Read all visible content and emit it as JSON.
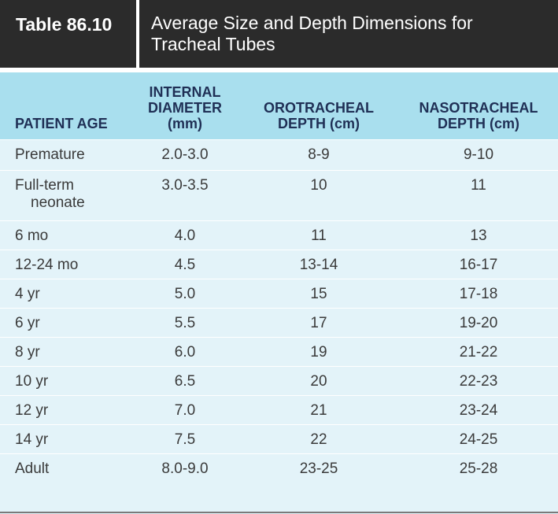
{
  "table": {
    "number": "Table 86.10",
    "title": "Average Size and Depth Dimensions for Tracheal Tubes"
  },
  "headers": {
    "patient_age": "PATIENT AGE",
    "internal_diameter": [
      "INTERNAL",
      "DIAMETER",
      "(mm)"
    ],
    "orotracheal": [
      "OROTRACHEAL",
      "DEPTH (cm)"
    ],
    "nasotracheal": [
      "NASOTRACHEAL",
      "DEPTH (cm)"
    ]
  },
  "rows": [
    {
      "age": "Premature",
      "diameter": "2.0-3.0",
      "oro": "8-9",
      "naso": "9-10"
    },
    {
      "age": "Full-term",
      "age2": "neonate",
      "diameter": "3.0-3.5",
      "oro": "10",
      "naso": "11"
    },
    {
      "age": "6 mo",
      "diameter": "4.0",
      "oro": "11",
      "naso": "13"
    },
    {
      "age": "12-24 mo",
      "diameter": "4.5",
      "oro": "13-14",
      "naso": "16-17"
    },
    {
      "age": "4 yr",
      "diameter": "5.0",
      "oro": "15",
      "naso": "17-18"
    },
    {
      "age": "6 yr",
      "diameter": "5.5",
      "oro": "17",
      "naso": "19-20"
    },
    {
      "age": "8 yr",
      "diameter": "6.0",
      "oro": "19",
      "naso": "21-22"
    },
    {
      "age": "10 yr",
      "diameter": "6.5",
      "oro": "20",
      "naso": "22-23"
    },
    {
      "age": "12 yr",
      "diameter": "7.0",
      "oro": "21",
      "naso": "23-24"
    },
    {
      "age": "14 yr",
      "diameter": "7.5",
      "oro": "22",
      "naso": "24-25"
    },
    {
      "age": "Adult",
      "diameter": "8.0-9.0",
      "oro": "23-25",
      "naso": "25-28"
    }
  ]
}
